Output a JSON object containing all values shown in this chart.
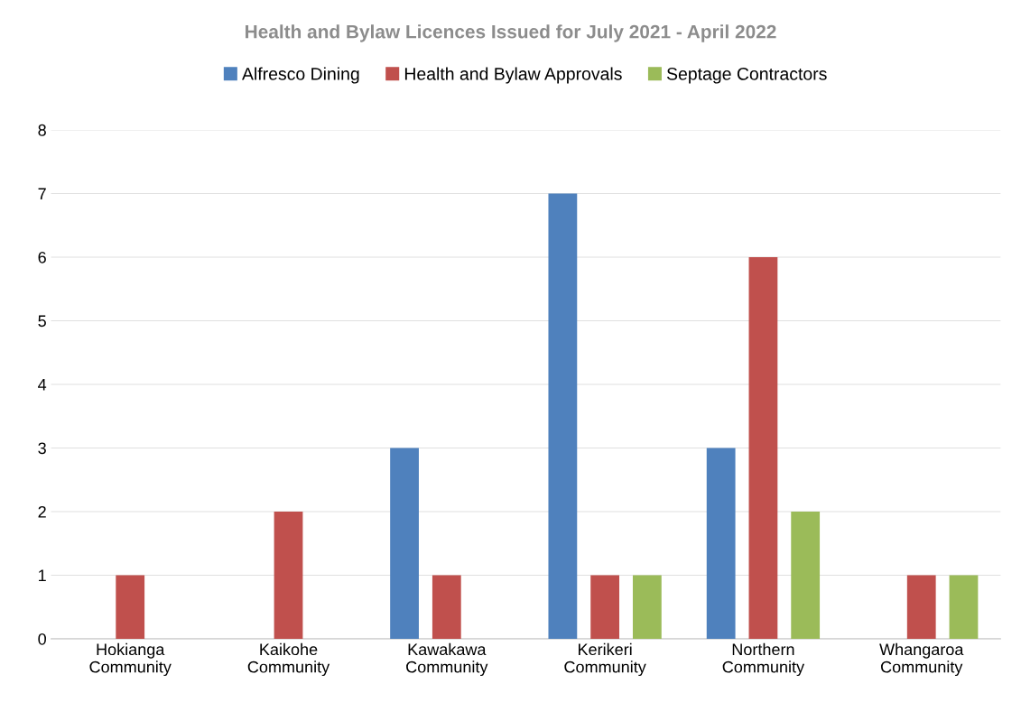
{
  "chart_data": {
    "type": "bar",
    "title": "Health and Bylaw Licences Issued for July 2021 - April 2022",
    "categories": [
      "Hokianga\nCommunity",
      "Kaikohe\nCommunity",
      "Kawakawa\nCommunity",
      "Kerikeri\nCommunity",
      "Northern\nCommunity",
      "Whangaroa\nCommunity"
    ],
    "series": [
      {
        "name": "Alfresco Dining",
        "color": "#4f81bd",
        "values": [
          0,
          0,
          3,
          7,
          3,
          0
        ]
      },
      {
        "name": "Health and Bylaw Approvals",
        "color": "#c0504d",
        "values": [
          1,
          2,
          1,
          1,
          6,
          1
        ]
      },
      {
        "name": "Septage Contractors",
        "color": "#9bbb59",
        "values": [
          0,
          0,
          0,
          1,
          2,
          1
        ]
      }
    ],
    "ylim": [
      0,
      8
    ],
    "yticks": [
      0,
      1,
      2,
      3,
      4,
      5,
      6,
      7,
      8
    ],
    "grid": "y",
    "legend": "top"
  }
}
